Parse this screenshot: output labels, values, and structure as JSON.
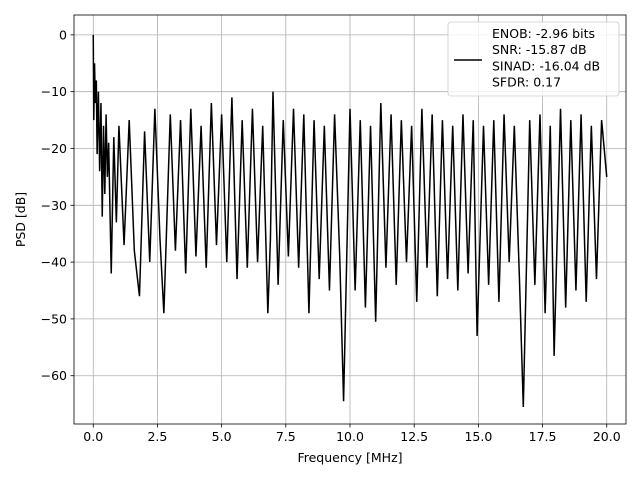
{
  "chart_data": {
    "type": "line",
    "title": "",
    "xlabel": "Frequency [MHz]",
    "ylabel": "PSD [dB]",
    "xlim": [
      -0.75,
      20.75
    ],
    "ylim": [
      -68.5,
      3.5
    ],
    "xticks": [
      0.0,
      2.5,
      5.0,
      7.5,
      10.0,
      12.5,
      15.0,
      17.5,
      20.0
    ],
    "xtick_labels": [
      "0.0",
      "2.5",
      "5.0",
      "7.5",
      "10.0",
      "12.5",
      "15.0",
      "17.5",
      "20.0"
    ],
    "yticks": [
      0,
      -10,
      -20,
      -30,
      -40,
      -50,
      -60
    ],
    "ytick_labels": [
      "0",
      "−10",
      "−20",
      "−30",
      "−40",
      "−50",
      "−60"
    ],
    "grid": true,
    "legend_position": "top-right",
    "series": [
      {
        "name": "ENOB: -2.96 bits\nSNR: -15.87 dB\nSINAD: -16.04 dB\nSFDR: 0.17",
        "color": "#000000",
        "description_of_shape": "noise-like PSD, peak 0 dB at DC, floor around -15 to -35 dB",
        "x": [
          0.0,
          0.02,
          0.05,
          0.08,
          0.12,
          0.15,
          0.2,
          0.25,
          0.3,
          0.35,
          0.4,
          0.45,
          0.5,
          0.55,
          0.6,
          0.7,
          0.8,
          0.9,
          1.0,
          1.2,
          1.4,
          1.6,
          1.8,
          2.0,
          2.2,
          2.4,
          2.6,
          2.75,
          3.0,
          3.2,
          3.4,
          3.6,
          3.8,
          4.0,
          4.2,
          4.4,
          4.6,
          4.8,
          5.0,
          5.2,
          5.4,
          5.6,
          5.8,
          6.0,
          6.2,
          6.4,
          6.6,
          6.8,
          6.9,
          7.0,
          7.2,
          7.4,
          7.6,
          7.8,
          8.0,
          8.2,
          8.4,
          8.6,
          8.8,
          9.0,
          9.2,
          9.4,
          9.6,
          9.75,
          10.0,
          10.2,
          10.4,
          10.6,
          10.8,
          11.0,
          11.2,
          11.4,
          11.6,
          11.8,
          12.0,
          12.2,
          12.4,
          12.6,
          12.8,
          13.0,
          13.2,
          13.4,
          13.6,
          13.8,
          14.0,
          14.2,
          14.4,
          14.6,
          14.8,
          14.95,
          15.2,
          15.4,
          15.6,
          15.8,
          16.0,
          16.2,
          16.4,
          16.6,
          16.75,
          17.0,
          17.2,
          17.4,
          17.6,
          17.8,
          17.95,
          18.2,
          18.4,
          18.6,
          18.8,
          19.0,
          19.2,
          19.4,
          19.6,
          19.8,
          20.0
        ],
        "y": [
          0.0,
          -15.0,
          -5.0,
          -12.0,
          -8.0,
          -21.0,
          -10.0,
          -24.0,
          -12.0,
          -32.0,
          -16.0,
          -28.0,
          -14.0,
          -25.0,
          -19.0,
          -42.0,
          -18.0,
          -33.0,
          -16.0,
          -37.0,
          -15.0,
          -38.0,
          -46.0,
          -17.0,
          -40.0,
          -13.0,
          -36.0,
          -49.0,
          -14.0,
          -38.0,
          -15.0,
          -42.0,
          -13.0,
          -39.0,
          -16.0,
          -41.0,
          -12.0,
          -37.0,
          -14.0,
          -40.0,
          -11.0,
          -43.0,
          -15.0,
          -41.0,
          -13.0,
          -40.0,
          -16.0,
          -49.0,
          -36.0,
          -10.0,
          -44.0,
          -15.0,
          -39.0,
          -13.0,
          -41.0,
          -14.0,
          -49.0,
          -15.0,
          -43.0,
          -16.0,
          -45.0,
          -14.0,
          -39.0,
          -64.5,
          -13.0,
          -45.0,
          -15.0,
          -48.0,
          -16.0,
          -50.5,
          -12.0,
          -41.0,
          -14.0,
          -44.0,
          -15.0,
          -40.0,
          -16.0,
          -47.0,
          -13.0,
          -41.0,
          -14.0,
          -46.0,
          -15.0,
          -43.0,
          -16.0,
          -45.0,
          -14.0,
          -42.0,
          -15.0,
          -53.0,
          -16.0,
          -44.0,
          -15.0,
          -47.0,
          -14.0,
          -40.0,
          -16.0,
          -43.0,
          -65.5,
          -15.0,
          -44.0,
          -14.0,
          -49.0,
          -16.0,
          -56.5,
          -13.0,
          -48.0,
          -15.0,
          -45.0,
          -14.0,
          -47.0,
          -16.0,
          -43.0,
          -15.0,
          -25.0
        ]
      }
    ]
  }
}
